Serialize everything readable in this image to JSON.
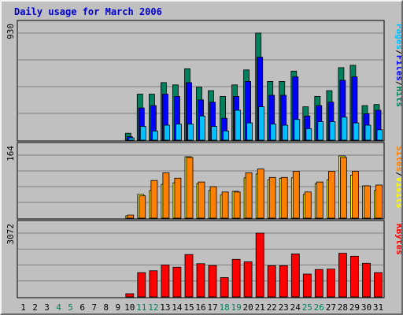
{
  "colors": {
    "background": "#c0c0c0",
    "panel": "#c0c0c0",
    "grid": "#808080",
    "title": "#0000cc",
    "hits": "#00805c",
    "files": "#0000ff",
    "pages": "#00c0ff",
    "visits": "#ffff00",
    "sites": "#ff8000",
    "kbytes": "#ff0000",
    "weekday": "#000000",
    "weekend": "#00805c"
  },
  "chart_data": {
    "type": "bar",
    "title": "Daily usage for March 2006",
    "categories": [
      "1",
      "2",
      "3",
      "4",
      "5",
      "6",
      "7",
      "8",
      "9",
      "10",
      "11",
      "12",
      "13",
      "14",
      "15",
      "16",
      "17",
      "18",
      "19",
      "20",
      "21",
      "22",
      "23",
      "24",
      "25",
      "26",
      "27",
      "28",
      "29",
      "30",
      "31"
    ],
    "weekend_days": [
      "4",
      "5",
      "11",
      "12",
      "18",
      "19",
      "25",
      "26"
    ],
    "panels": [
      {
        "id": "hits-files-pages",
        "max_label": "930",
        "max": 930,
        "legend": [
          {
            "text": "Pages",
            "color": "#00c0ff"
          },
          {
            "text": "/",
            "color": "#000000"
          },
          {
            "text": "Files",
            "color": "#0000ff"
          },
          {
            "text": "/",
            "color": "#000000"
          },
          {
            "text": "Hits",
            "color": "#00805c"
          }
        ],
        "series": [
          {
            "key": "hits",
            "color": "#00805c",
            "values": [
              0,
              0,
              0,
              0,
              0,
              0,
              0,
              0,
              0,
              60,
              400,
              400,
              500,
              480,
              620,
              460,
              430,
              380,
              480,
              610,
              930,
              510,
              510,
              600,
              290,
              380,
              430,
              630,
              650,
              300,
              310
            ]
          },
          {
            "key": "files",
            "color": "#0000ff",
            "values": [
              0,
              0,
              0,
              0,
              0,
              0,
              0,
              0,
              0,
              30,
              280,
              300,
              400,
              380,
              500,
              350,
              330,
              190,
              380,
              510,
              720,
              390,
              390,
              550,
              210,
              300,
              330,
              520,
              550,
              230,
              260
            ]
          },
          {
            "key": "pages",
            "color": "#00c0ff",
            "values": [
              0,
              0,
              0,
              0,
              0,
              0,
              0,
              0,
              0,
              20,
              120,
              80,
              130,
              140,
              140,
              210,
              120,
              80,
              260,
              150,
              290,
              140,
              130,
              180,
              100,
              160,
              160,
              200,
              150,
              130,
              90
            ]
          }
        ]
      },
      {
        "id": "visits-sites",
        "max_label": "164",
        "max": 164,
        "legend": [
          {
            "text": "Sites",
            "color": "#ff8000"
          },
          {
            "text": "/",
            "color": "#000000"
          },
          {
            "text": "Visits",
            "color": "#ffff00"
          }
        ],
        "series": [
          {
            "key": "visits",
            "color": "#ffff00",
            "values": [
              0,
              0,
              0,
              0,
              0,
              0,
              0,
              0,
              0,
              6,
              62,
              72,
              88,
              92,
              160,
              90,
              72,
              60,
              70,
              105,
              115,
              100,
              104,
              105,
              62,
              90,
              100,
              162,
              112,
              84,
              72
            ]
          },
          {
            "key": "sites",
            "color": "#ff8000",
            "values": [
              0,
              0,
              0,
              0,
              0,
              0,
              0,
              0,
              0,
              8,
              58,
              98,
              118,
              104,
              158,
              94,
              82,
              68,
              68,
              118,
              128,
              106,
              106,
              122,
              68,
              94,
              122,
              158,
              122,
              84,
              86
            ]
          }
        ]
      },
      {
        "id": "kbytes",
        "max_label": "3072",
        "max": 3072,
        "legend": [
          {
            "text": "KBytes",
            "color": "#ff0000"
          }
        ],
        "series": [
          {
            "key": "kbytes",
            "color": "#ff0000",
            "values": [
              0,
              0,
              0,
              0,
              0,
              0,
              0,
              0,
              0,
              150,
              1170,
              1260,
              1540,
              1430,
              2040,
              1600,
              1510,
              930,
              1810,
              1690,
              3072,
              1500,
              1500,
              2070,
              1100,
              1320,
              1340,
              2100,
              1960,
              1620,
              1170
            ]
          }
        ]
      }
    ]
  }
}
